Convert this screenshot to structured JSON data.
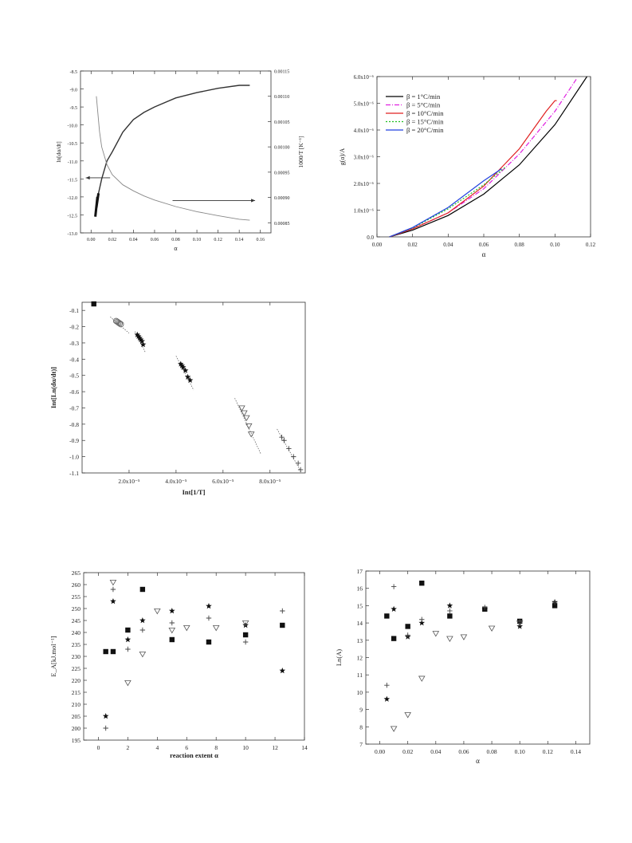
{
  "chart_data": [
    {
      "id": "c1",
      "type": "line",
      "xlabel": "α",
      "ylabel": "ln[dα/dt]",
      "y2label": "1000/T [K⁻¹]",
      "xlim": [
        -0.01,
        0.17
      ],
      "ylim": [
        -13.0,
        -8.5
      ],
      "y2lim": [
        0.00083,
        0.00115
      ],
      "xticks": [
        "0.00",
        "0.02",
        "0.04",
        "0.06",
        "0.08",
        "0.10",
        "0.12",
        "0.14",
        "0.16"
      ],
      "yticks": [
        "-8.5",
        "-9.0",
        "-9.5",
        "-10.0",
        "-10.5",
        "-11.0",
        "-11.5",
        "-12.0",
        "-12.5",
        "-13.0"
      ],
      "y2ticks": [
        "0.00115",
        "0.00110",
        "0.00105",
        "0.00100",
        "0.00095",
        "0.00090",
        "0.00085"
      ],
      "series": [
        {
          "axis": "left",
          "color": "#333333",
          "x": [
            0.005,
            0.007,
            0.01,
            0.015,
            0.02,
            0.03,
            0.04,
            0.05,
            0.06,
            0.08,
            0.1,
            0.12,
            0.14,
            0.15
          ],
          "y": [
            -12.3,
            -11.9,
            -11.5,
            -11.0,
            -10.75,
            -10.2,
            -9.85,
            -9.65,
            -9.5,
            -9.25,
            -9.1,
            -8.98,
            -8.9,
            -8.9
          ]
        },
        {
          "axis": "right",
          "color": "#888888",
          "x": [
            0.005,
            0.008,
            0.01,
            0.015,
            0.02,
            0.03,
            0.04,
            0.05,
            0.06,
            0.08,
            0.1,
            0.12,
            0.14,
            0.15
          ],
          "y": [
            0.0011,
            0.00103,
            0.001,
            0.000965,
            0.000945,
            0.000925,
            0.000913,
            0.000903,
            0.000895,
            0.000882,
            0.000872,
            0.000864,
            0.000857,
            0.000855
          ]
        }
      ],
      "annotations": [
        {
          "type": "arrow",
          "direction": "left",
          "from": [
            0.018,
            -11.47
          ],
          "to": [
            -0.005,
            -11.47
          ]
        },
        {
          "type": "arrow",
          "direction": "right",
          "from": [
            0.077,
            -12.1
          ],
          "to": [
            0.155,
            -12.1
          ]
        }
      ]
    },
    {
      "id": "c2",
      "type": "line",
      "xlabel": "α",
      "ylabel": "g(α)/A",
      "xlim": [
        0.0,
        0.12
      ],
      "ylim": [
        0.0,
        6.0
      ],
      "xticks": [
        "0.00",
        "0.02",
        "0.04",
        "0.06",
        "0.08",
        "0.10",
        "0.12"
      ],
      "yticks": [
        "0.0",
        "1.0x10⁻⁶",
        "2.0x10⁻⁶",
        "3.0x10⁻⁶",
        "4.0x10⁻⁶",
        "5.0x10⁻⁶",
        "6.0x10⁻⁶"
      ],
      "legend": "top-left",
      "series": [
        {
          "name": "β = 1°C/min",
          "color": "#000000",
          "dash": "",
          "x": [
            0.007,
            0.02,
            0.04,
            0.06,
            0.08,
            0.1,
            0.118
          ],
          "y": [
            0.0,
            0.25,
            0.8,
            1.6,
            2.7,
            4.2,
            6.0
          ]
        },
        {
          "name": "β = 5°C/min",
          "color": "#e020e0",
          "dash": "6,2,1,2",
          "x": [
            0.007,
            0.02,
            0.04,
            0.06,
            0.08,
            0.1,
            0.112
          ],
          "y": [
            0.0,
            0.3,
            0.9,
            1.8,
            3.1,
            4.7,
            5.9
          ]
        },
        {
          "name": "β = 10°C/min",
          "color": "#e02020",
          "dash": "",
          "x": [
            0.007,
            0.02,
            0.04,
            0.06,
            0.08,
            0.095,
            0.1,
            0.101
          ],
          "y": [
            0.0,
            0.3,
            0.9,
            1.9,
            3.3,
            4.7,
            5.1,
            5.1
          ]
        },
        {
          "name": "β = 15°C/min",
          "color": "#20c020",
          "dash": "2,2",
          "x": [
            0.007,
            0.02,
            0.04,
            0.06,
            0.072
          ],
          "y": [
            0.0,
            0.33,
            1.05,
            1.95,
            2.6
          ]
        },
        {
          "name": "β = 20°C/min",
          "color": "#2040e0",
          "dash": "",
          "x": [
            0.007,
            0.02,
            0.04,
            0.06,
            0.07
          ],
          "y": [
            0.0,
            0.35,
            1.1,
            2.1,
            2.55
          ]
        }
      ]
    },
    {
      "id": "c3",
      "type": "scatter",
      "xlabel": "Int[1/T]",
      "ylabel": "Int[Ln(dα/dt)]",
      "xlim": [
        0.0,
        9.5
      ],
      "ylim": [
        -1.1,
        -0.05
      ],
      "xticks_val": [
        2,
        4,
        6,
        8
      ],
      "xticks": [
        "2.0x10⁻⁵",
        "4.0x10⁻⁵",
        "6.0x10⁻⁵",
        "8.0x10⁻⁵"
      ],
      "yticks_val": [
        -0.1,
        -0.2,
        -0.3,
        -0.4,
        -0.5,
        -0.6,
        -0.7,
        -0.8,
        -0.9,
        -1.0,
        -1.1
      ],
      "yticks": [
        "-0.1",
        "-0.2",
        "-0.3",
        "-0.4",
        "-0.5",
        "-0.6",
        "-0.7",
        "-0.8",
        "-0.9",
        "-1.0",
        "-1.1"
      ],
      "series": [
        {
          "marker": "square",
          "points": [
            [
              0.5,
              -0.06
            ]
          ]
        },
        {
          "marker": "circle",
          "points": [
            [
              1.45,
              -0.165
            ],
            [
              1.5,
              -0.17
            ],
            [
              1.55,
              -0.175
            ],
            [
              1.6,
              -0.18
            ],
            [
              1.65,
              -0.185
            ]
          ]
        },
        {
          "marker": "star",
          "points": [
            [
              2.35,
              -0.25
            ],
            [
              2.4,
              -0.26
            ],
            [
              2.45,
              -0.27
            ],
            [
              2.5,
              -0.28
            ],
            [
              2.55,
              -0.29
            ],
            [
              2.6,
              -0.31
            ]
          ]
        },
        {
          "marker": "star",
          "points": [
            [
              4.2,
              -0.43
            ],
            [
              4.25,
              -0.44
            ],
            [
              4.3,
              -0.45
            ],
            [
              4.4,
              -0.47
            ],
            [
              4.5,
              -0.51
            ],
            [
              4.6,
              -0.53
            ]
          ]
        },
        {
          "marker": "triangle-down",
          "points": [
            [
              6.8,
              -0.7
            ],
            [
              6.9,
              -0.73
            ],
            [
              7.0,
              -0.76
            ],
            [
              7.1,
              -0.81
            ],
            [
              7.2,
              -0.86
            ]
          ]
        },
        {
          "marker": "plus",
          "points": [
            [
              8.5,
              -0.88
            ],
            [
              8.6,
              -0.9
            ],
            [
              8.8,
              -0.95
            ],
            [
              9.0,
              -1.0
            ],
            [
              9.2,
              -1.04
            ],
            [
              9.3,
              -1.08
            ]
          ]
        }
      ],
      "fit_lines": [
        [
          [
            1.2,
            -0.14
          ],
          [
            2.0,
            -0.24
          ]
        ],
        [
          [
            2.25,
            -0.23
          ],
          [
            2.7,
            -0.36
          ]
        ],
        [
          [
            4.0,
            -0.38
          ],
          [
            4.75,
            -0.59
          ]
        ],
        [
          [
            6.5,
            -0.64
          ],
          [
            7.6,
            -0.98
          ]
        ],
        [
          [
            8.3,
            -0.83
          ],
          [
            9.35,
            -1.1
          ]
        ]
      ]
    },
    {
      "id": "c4",
      "type": "scatter",
      "xlabel": "reaction extent α",
      "ylabel": "E_A[kJ.mol⁻¹]",
      "xlim": [
        -1,
        14
      ],
      "ylim": [
        195,
        265
      ],
      "xticks_val": [
        0,
        2,
        4,
        6,
        8,
        10,
        12,
        14
      ],
      "xticks": [
        "0",
        "2",
        "4",
        "6",
        "8",
        "10",
        "12",
        "14"
      ],
      "yticks_val": [
        195,
        200,
        205,
        210,
        215,
        220,
        225,
        230,
        235,
        240,
        245,
        250,
        255,
        260,
        265
      ],
      "yticks": [
        "195",
        "200",
        "205",
        "210",
        "215",
        "220",
        "225",
        "230",
        "235",
        "240",
        "245",
        "250",
        "255",
        "260",
        "265"
      ],
      "series": [
        {
          "marker": "square",
          "points": [
            [
              0.5,
              232
            ],
            [
              1,
              232
            ],
            [
              2,
              241
            ],
            [
              3,
              258
            ],
            [
              5,
              237
            ],
            [
              7.5,
              236
            ],
            [
              10,
              239
            ],
            [
              12.5,
              243
            ]
          ]
        },
        {
          "marker": "star",
          "points": [
            [
              0.5,
              205
            ],
            [
              1,
              253
            ],
            [
              2,
              237
            ],
            [
              3,
              245
            ],
            [
              5,
              249
            ],
            [
              7.5,
              251
            ],
            [
              10,
              243
            ],
            [
              12.5,
              224
            ]
          ]
        },
        {
          "marker": "plus",
          "points": [
            [
              0.5,
              200
            ],
            [
              1,
              258
            ],
            [
              2,
              233
            ],
            [
              3,
              241
            ],
            [
              5,
              244
            ],
            [
              7.5,
              246
            ],
            [
              10,
              236
            ],
            [
              12.5,
              249
            ]
          ]
        },
        {
          "marker": "triangle-down",
          "points": [
            [
              1,
              261
            ],
            [
              2,
              219
            ],
            [
              3,
              231
            ],
            [
              4,
              249
            ],
            [
              5,
              241
            ],
            [
              6,
              242
            ],
            [
              8,
              242
            ],
            [
              10,
              244
            ]
          ]
        }
      ]
    },
    {
      "id": "c5",
      "type": "scatter",
      "xlabel": "α",
      "ylabel": "Ln(A)",
      "xlim": [
        -0.01,
        0.15
      ],
      "ylim": [
        7,
        17
      ],
      "xticks_val": [
        0,
        0.02,
        0.04,
        0.06,
        0.08,
        0.1,
        0.12,
        0.14
      ],
      "xticks": [
        "0.00",
        "0.02",
        "0.04",
        "0.06",
        "0.08",
        "0.10",
        "0.12",
        "0.14"
      ],
      "yticks_val": [
        7,
        8,
        9,
        10,
        11,
        12,
        13,
        14,
        15,
        16,
        17
      ],
      "yticks": [
        "7",
        "8",
        "9",
        "10",
        "11",
        "12",
        "13",
        "14",
        "15",
        "16",
        "17"
      ],
      "series": [
        {
          "marker": "square",
          "points": [
            [
              0.005,
              14.4
            ],
            [
              0.01,
              13.1
            ],
            [
              0.02,
              13.8
            ],
            [
              0.03,
              16.3
            ],
            [
              0.05,
              14.4
            ],
            [
              0.075,
              14.8
            ],
            [
              0.1,
              14.1
            ],
            [
              0.125,
              15.0
            ]
          ]
        },
        {
          "marker": "star",
          "points": [
            [
              0.005,
              9.6
            ],
            [
              0.01,
              14.8
            ],
            [
              0.02,
              13.2
            ],
            [
              0.03,
              14.0
            ],
            [
              0.05,
              15.0
            ],
            [
              0.075,
              14.8
            ],
            [
              0.1,
              13.8
            ],
            [
              0.125,
              15.2
            ]
          ]
        },
        {
          "marker": "plus",
          "points": [
            [
              0.005,
              10.4
            ],
            [
              0.01,
              16.1
            ],
            [
              0.02,
              13.3
            ],
            [
              0.03,
              14.2
            ],
            [
              0.05,
              14.7
            ],
            [
              0.075,
              14.9
            ],
            [
              0.1,
              14.1
            ],
            [
              0.125,
              15.2
            ]
          ]
        },
        {
          "marker": "triangle-down",
          "points": [
            [
              0.01,
              7.9
            ],
            [
              0.02,
              8.7
            ],
            [
              0.03,
              10.8
            ],
            [
              0.04,
              13.4
            ],
            [
              0.05,
              13.1
            ],
            [
              0.06,
              13.2
            ],
            [
              0.08,
              13.7
            ],
            [
              0.1,
              14.0
            ]
          ]
        }
      ]
    }
  ]
}
